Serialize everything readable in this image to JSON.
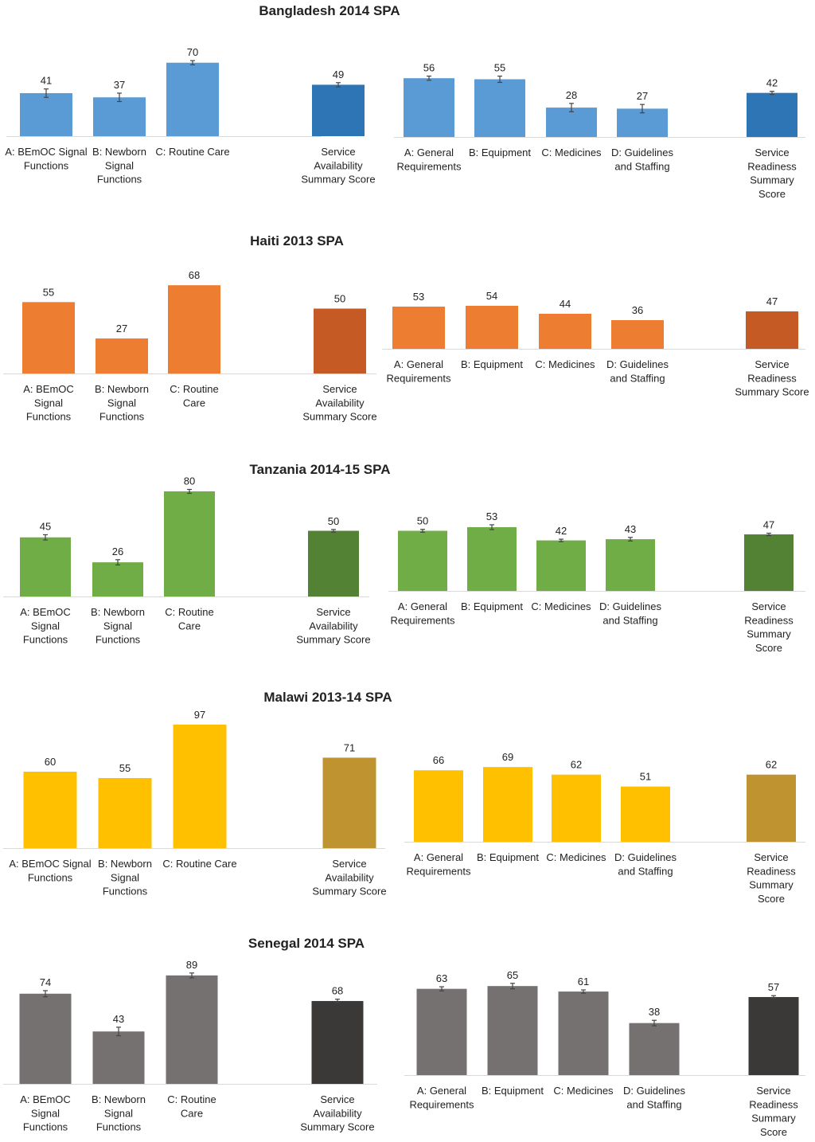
{
  "chart_data": [
    {
      "type": "bar",
      "country": "Bangladesh 2014 SPA",
      "ylim": [
        0,
        100
      ],
      "colors": {
        "main": "#5b9bd5",
        "summary": "#2e75b6"
      },
      "availability": {
        "categories": [
          "A: BEmOC Signal Functions",
          "B: Newborn Signal Functions",
          "C: Routine Care",
          "Service Availability Summary Score"
        ],
        "values": [
          41,
          37,
          70,
          49
        ],
        "errors": [
          4,
          4,
          2,
          2
        ]
      },
      "readiness": {
        "categories": [
          "A: General Requirements",
          "B: Equipment",
          "C: Medicines",
          "D: Guidelines and Staffing",
          "Service Readiness Summary Score"
        ],
        "values": [
          56,
          55,
          28,
          27,
          42
        ],
        "errors": [
          2,
          3,
          4,
          4,
          1.5
        ]
      }
    },
    {
      "type": "bar",
      "country": "Haiti 2013 SPA",
      "ylim": [
        0,
        100
      ],
      "colors": {
        "main": "#ed7d31",
        "summary": "#c55a25"
      },
      "availability": {
        "categories": [
          "A: BEmOC Signal Functions",
          "B: Newborn Signal Functions",
          "C: Routine Care",
          "Service Availability Summary Score"
        ],
        "values": [
          55,
          27,
          68,
          50
        ],
        "errors": [
          0,
          0,
          0,
          0
        ]
      },
      "readiness": {
        "categories": [
          "A: General Requirements",
          "B: Equipment",
          "C: Medicines",
          "D: Guidelines and Staffing",
          "Service Readiness Summary Score"
        ],
        "values": [
          53,
          54,
          44,
          36,
          47
        ],
        "errors": [
          0,
          0,
          0,
          0,
          0
        ]
      }
    },
    {
      "type": "bar",
      "country": "Tanzania 2014-15 SPA",
      "ylim": [
        0,
        100
      ],
      "colors": {
        "main": "#70ad47",
        "summary": "#548235"
      },
      "availability": {
        "categories": [
          "A: BEmOC Signal Functions",
          "B: Newborn Signal Functions",
          "C: Routine Care",
          "Service Availability Summary Score"
        ],
        "values": [
          45,
          26,
          80,
          50
        ],
        "errors": [
          2,
          2,
          1.5,
          1
        ]
      },
      "readiness": {
        "categories": [
          "A: General Requirements",
          "B: Equipment",
          "C: Medicines",
          "D: Guidelines and Staffing",
          "Service Readiness Summary Score"
        ],
        "values": [
          50,
          53,
          42,
          43,
          47
        ],
        "errors": [
          1.2,
          2,
          1,
          1.5,
          1
        ]
      }
    },
    {
      "type": "bar",
      "country": "Malawi 2013-14 SPA",
      "ylim": [
        0,
        100
      ],
      "colors": {
        "main": "#ffc000",
        "summary": "#bf9430"
      },
      "availability": {
        "categories": [
          "A: BEmOC Signal Functions",
          "B: Newborn Signal Functions",
          "C: Routine Care",
          "Service Availability Summary Score"
        ],
        "values": [
          60,
          55,
          97,
          71
        ],
        "errors": [
          0,
          0,
          0,
          0
        ]
      },
      "readiness": {
        "categories": [
          "A: General Requirements",
          "B: Equipment",
          "C: Medicines",
          "D: Guidelines and Staffing",
          "Service Readiness Summary Score"
        ],
        "values": [
          66,
          69,
          62,
          51,
          62
        ],
        "errors": [
          0,
          0,
          0,
          0,
          0
        ]
      }
    },
    {
      "type": "bar",
      "country": "Senegal 2014 SPA",
      "ylim": [
        0,
        100
      ],
      "colors": {
        "main": "#767171",
        "summary": "#3b3838"
      },
      "availability": {
        "categories": [
          "A: BEmOC Signal Functions",
          "B: Newborn Signal Functions",
          "C: Routine Care",
          "Service Availability Summary Score"
        ],
        "values": [
          74,
          43,
          89,
          68
        ],
        "errors": [
          2.5,
          3.5,
          2,
          1.5
        ]
      },
      "readiness": {
        "categories": [
          "A: General Requirements",
          "B: Equipment",
          "C: Medicines",
          "D: Guidelines and Staffing",
          "Service Readiness Summary Score"
        ],
        "values": [
          63,
          65,
          61,
          38,
          57
        ],
        "errors": [
          1.5,
          2,
          1.2,
          2,
          1
        ]
      }
    }
  ]
}
